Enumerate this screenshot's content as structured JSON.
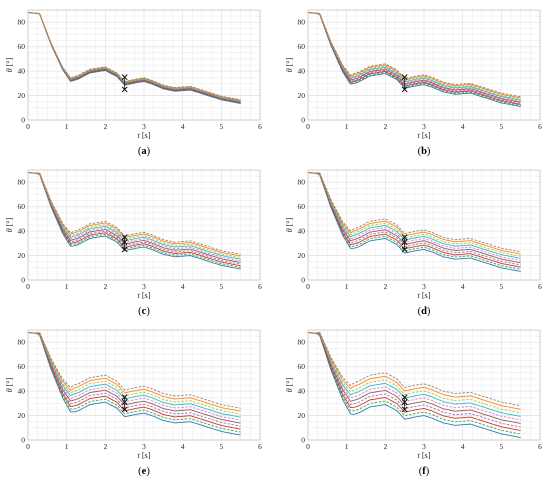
{
  "colors": {
    "grid": "#e3e3e3",
    "axis": "#222222",
    "marker": "#111111",
    "series_palette": [
      "#1f77b4",
      "#2ca02c",
      "#d62728",
      "#9467bd",
      "#8c564b",
      "#e377c2",
      "#17becf",
      "#bcbd22",
      "#ff7f0e",
      "#7f7f7f"
    ]
  },
  "chart_data": [
    {
      "type": "line",
      "panel_label": "(a)",
      "xlabel": "t",
      "xlabel_unit": "[s]",
      "ylabel": "θ",
      "ylabel_unit": "[°]",
      "xlim": [
        0,
        6
      ],
      "ylim": [
        0,
        90
      ],
      "xticks": [
        "0",
        "1",
        "2",
        "3",
        "4",
        "5",
        "6"
      ],
      "yticks": [
        "0",
        "20",
        "40",
        "60",
        "80"
      ],
      "grid": true,
      "nominal_trajectory": {
        "x": [
          0,
          0.3,
          0.6,
          0.9,
          1.1,
          1.3,
          1.6,
          2.0,
          2.3,
          2.5,
          2.8,
          3.0,
          3.2,
          3.5,
          3.8,
          4.2,
          4.6,
          5.0,
          5.5
        ],
        "y": [
          88,
          87,
          62,
          42,
          33,
          35,
          40,
          42,
          37,
          30,
          32,
          33,
          31,
          27,
          25,
          26,
          22,
          18,
          15
        ]
      },
      "band_spread": 1.5,
      "series_count": 10,
      "markers": [
        {
          "x": 2.5,
          "y": 35
        },
        {
          "x": 2.5,
          "y": 25
        }
      ]
    },
    {
      "type": "line",
      "panel_label": "(b)",
      "xlabel": "t",
      "xlabel_unit": "[s]",
      "ylabel": "θ",
      "ylabel_unit": "[°]",
      "xlim": [
        0,
        6
      ],
      "ylim": [
        0,
        90
      ],
      "xticks": [
        "0",
        "1",
        "2",
        "3",
        "4",
        "5",
        "6"
      ],
      "yticks": [
        "0",
        "20",
        "40",
        "60",
        "80"
      ],
      "grid": true,
      "nominal_trajectory": {
        "x": [
          0,
          0.3,
          0.6,
          0.9,
          1.1,
          1.3,
          1.6,
          2.0,
          2.3,
          2.5,
          2.8,
          3.0,
          3.2,
          3.5,
          3.8,
          4.2,
          4.6,
          5.0,
          5.5
        ],
        "y": [
          88,
          87,
          62,
          42,
          33,
          35,
          40,
          42,
          37,
          30,
          32,
          33,
          31,
          27,
          25,
          26,
          22,
          18,
          15
        ]
      },
      "band_spread": 4,
      "series_count": 10,
      "markers": [
        {
          "x": 2.5,
          "y": 35
        },
        {
          "x": 2.5,
          "y": 25
        }
      ]
    },
    {
      "type": "line",
      "panel_label": "(c)",
      "xlabel": "t",
      "xlabel_unit": "[s]",
      "ylabel": "θ",
      "ylabel_unit": "[°]",
      "xlim": [
        0,
        6
      ],
      "ylim": [
        0,
        90
      ],
      "xticks": [
        "0",
        "1",
        "2",
        "3",
        "4",
        "5",
        "6"
      ],
      "yticks": [
        "0",
        "20",
        "40",
        "60",
        "80"
      ],
      "grid": true,
      "nominal_trajectory": {
        "x": [
          0,
          0.3,
          0.6,
          0.9,
          1.1,
          1.3,
          1.6,
          2.0,
          2.3,
          2.5,
          2.8,
          3.0,
          3.2,
          3.5,
          3.8,
          4.2,
          4.6,
          5.0,
          5.5
        ],
        "y": [
          88,
          87,
          62,
          42,
          33,
          35,
          40,
          42,
          37,
          30,
          32,
          33,
          31,
          27,
          25,
          26,
          22,
          18,
          15
        ]
      },
      "band_spread": 6,
      "series_count": 10,
      "markers": [
        {
          "x": 2.5,
          "y": 35
        },
        {
          "x": 2.5,
          "y": 31
        },
        {
          "x": 2.5,
          "y": 25
        }
      ]
    },
    {
      "type": "line",
      "panel_label": "(d)",
      "xlabel": "t",
      "xlabel_unit": "[s]",
      "ylabel": "θ",
      "ylabel_unit": "[°]",
      "xlim": [
        0,
        6
      ],
      "ylim": [
        0,
        90
      ],
      "xticks": [
        "0",
        "1",
        "2",
        "3",
        "4",
        "5",
        "6"
      ],
      "yticks": [
        "0",
        "20",
        "40",
        "60",
        "80"
      ],
      "grid": true,
      "nominal_trajectory": {
        "x": [
          0,
          0.3,
          0.6,
          0.9,
          1.1,
          1.3,
          1.6,
          2.0,
          2.3,
          2.5,
          2.8,
          3.0,
          3.2,
          3.5,
          3.8,
          4.2,
          4.6,
          5.0,
          5.5
        ],
        "y": [
          88,
          87,
          62,
          42,
          33,
          35,
          40,
          42,
          37,
          30,
          32,
          33,
          31,
          27,
          25,
          26,
          22,
          18,
          15
        ]
      },
      "band_spread": 8,
      "series_count": 10,
      "markers": [
        {
          "x": 2.5,
          "y": 35
        },
        {
          "x": 2.5,
          "y": 31
        },
        {
          "x": 2.5,
          "y": 25
        }
      ]
    },
    {
      "type": "line",
      "panel_label": "(e)",
      "xlabel": "t",
      "xlabel_unit": "[s]",
      "ylabel": "θ",
      "ylabel_unit": "[°]",
      "xlim": [
        0,
        6
      ],
      "ylim": [
        0,
        90
      ],
      "xticks": [
        "0",
        "1",
        "2",
        "3",
        "4",
        "5",
        "6"
      ],
      "yticks": [
        "0",
        "20",
        "40",
        "60",
        "80"
      ],
      "grid": true,
      "nominal_trajectory": {
        "x": [
          0,
          0.3,
          0.6,
          0.9,
          1.1,
          1.3,
          1.6,
          2.0,
          2.3,
          2.5,
          2.8,
          3.0,
          3.2,
          3.5,
          3.8,
          4.2,
          4.6,
          5.0,
          5.5
        ],
        "y": [
          88,
          87,
          62,
          42,
          33,
          35,
          40,
          42,
          37,
          30,
          32,
          33,
          31,
          27,
          25,
          26,
          22,
          18,
          15
        ]
      },
      "band_spread": 11,
      "series_count": 10,
      "markers": [
        {
          "x": 2.5,
          "y": 35
        },
        {
          "x": 2.5,
          "y": 31
        },
        {
          "x": 2.5,
          "y": 25
        }
      ]
    },
    {
      "type": "line",
      "panel_label": "(f)",
      "xlabel": "t",
      "xlabel_unit": "[s]",
      "ylabel": "θ",
      "ylabel_unit": "[°]",
      "xlim": [
        0,
        6
      ],
      "ylim": [
        0,
        90
      ],
      "xticks": [
        "0",
        "1",
        "2",
        "3",
        "4",
        "5",
        "6"
      ],
      "yticks": [
        "0",
        "20",
        "40",
        "60",
        "80"
      ],
      "grid": true,
      "nominal_trajectory": {
        "x": [
          0,
          0.3,
          0.6,
          0.9,
          1.1,
          1.3,
          1.6,
          2.0,
          2.3,
          2.5,
          2.8,
          3.0,
          3.2,
          3.5,
          3.8,
          4.2,
          4.6,
          5.0,
          5.5
        ],
        "y": [
          88,
          87,
          62,
          42,
          33,
          35,
          40,
          42,
          37,
          30,
          32,
          33,
          31,
          27,
          25,
          26,
          22,
          18,
          15
        ]
      },
      "band_spread": 13,
      "series_count": 10,
      "markers": [
        {
          "x": 2.5,
          "y": 35
        },
        {
          "x": 2.5,
          "y": 31
        },
        {
          "x": 2.5,
          "y": 25
        }
      ]
    }
  ]
}
